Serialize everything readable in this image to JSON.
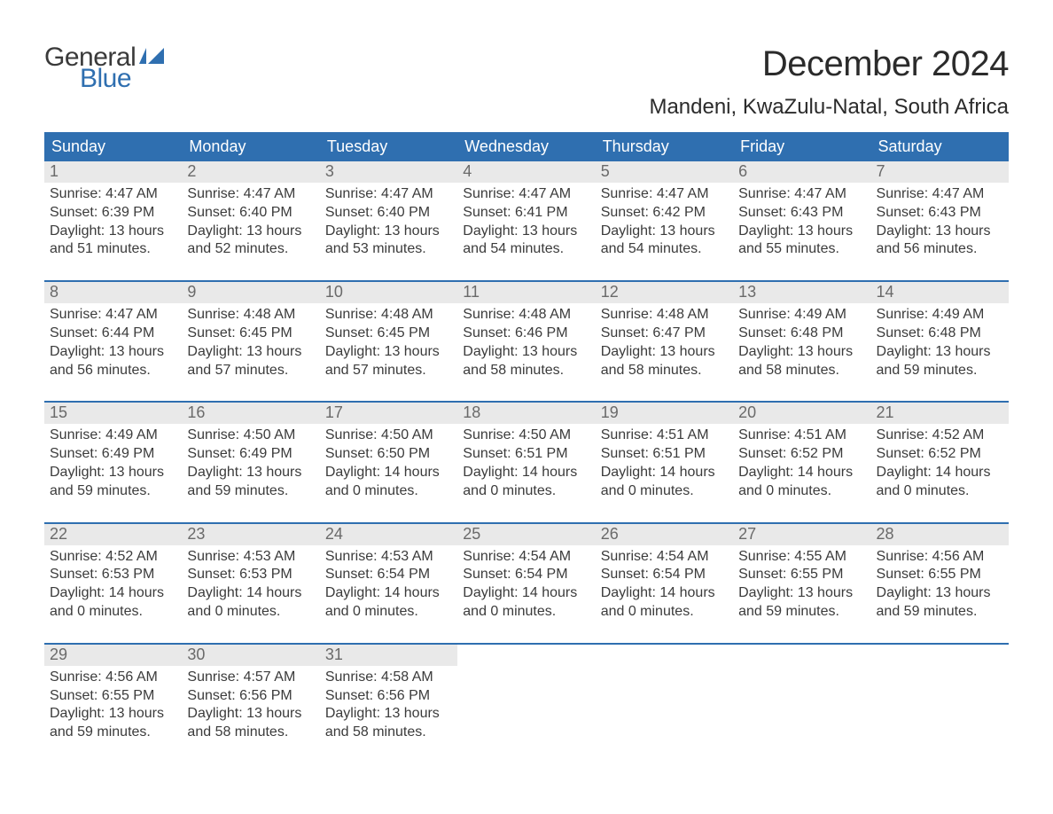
{
  "brand": {
    "general": "General",
    "blue": "Blue",
    "flag_color": "#2f6fb0"
  },
  "title": "December 2024",
  "location": "Mandeni, KwaZulu-Natal, South Africa",
  "colors": {
    "header_bg": "#2f6fb0",
    "header_text": "#ffffff",
    "datebar_bg": "#e9e9e9",
    "datebar_text": "#6a6a6a",
    "body_text": "#3b3b3b",
    "rule": "#2f6fb0",
    "page_bg": "#ffffff"
  },
  "day_headers": [
    "Sunday",
    "Monday",
    "Tuesday",
    "Wednesday",
    "Thursday",
    "Friday",
    "Saturday"
  ],
  "labels": {
    "sunrise": "Sunrise:",
    "sunset": "Sunset:",
    "daylight": "Daylight:"
  },
  "weeks": [
    [
      {
        "date": "1",
        "sunrise": "4:47 AM",
        "sunset": "6:39 PM",
        "daylight_l1": "13 hours",
        "daylight_l2": "and 51 minutes."
      },
      {
        "date": "2",
        "sunrise": "4:47 AM",
        "sunset": "6:40 PM",
        "daylight_l1": "13 hours",
        "daylight_l2": "and 52 minutes."
      },
      {
        "date": "3",
        "sunrise": "4:47 AM",
        "sunset": "6:40 PM",
        "daylight_l1": "13 hours",
        "daylight_l2": "and 53 minutes."
      },
      {
        "date": "4",
        "sunrise": "4:47 AM",
        "sunset": "6:41 PM",
        "daylight_l1": "13 hours",
        "daylight_l2": "and 54 minutes."
      },
      {
        "date": "5",
        "sunrise": "4:47 AM",
        "sunset": "6:42 PM",
        "daylight_l1": "13 hours",
        "daylight_l2": "and 54 minutes."
      },
      {
        "date": "6",
        "sunrise": "4:47 AM",
        "sunset": "6:43 PM",
        "daylight_l1": "13 hours",
        "daylight_l2": "and 55 minutes."
      },
      {
        "date": "7",
        "sunrise": "4:47 AM",
        "sunset": "6:43 PM",
        "daylight_l1": "13 hours",
        "daylight_l2": "and 56 minutes."
      }
    ],
    [
      {
        "date": "8",
        "sunrise": "4:47 AM",
        "sunset": "6:44 PM",
        "daylight_l1": "13 hours",
        "daylight_l2": "and 56 minutes."
      },
      {
        "date": "9",
        "sunrise": "4:48 AM",
        "sunset": "6:45 PM",
        "daylight_l1": "13 hours",
        "daylight_l2": "and 57 minutes."
      },
      {
        "date": "10",
        "sunrise": "4:48 AM",
        "sunset": "6:45 PM",
        "daylight_l1": "13 hours",
        "daylight_l2": "and 57 minutes."
      },
      {
        "date": "11",
        "sunrise": "4:48 AM",
        "sunset": "6:46 PM",
        "daylight_l1": "13 hours",
        "daylight_l2": "and 58 minutes."
      },
      {
        "date": "12",
        "sunrise": "4:48 AM",
        "sunset": "6:47 PM",
        "daylight_l1": "13 hours",
        "daylight_l2": "and 58 minutes."
      },
      {
        "date": "13",
        "sunrise": "4:49 AM",
        "sunset": "6:48 PM",
        "daylight_l1": "13 hours",
        "daylight_l2": "and 58 minutes."
      },
      {
        "date": "14",
        "sunrise": "4:49 AM",
        "sunset": "6:48 PM",
        "daylight_l1": "13 hours",
        "daylight_l2": "and 59 minutes."
      }
    ],
    [
      {
        "date": "15",
        "sunrise": "4:49 AM",
        "sunset": "6:49 PM",
        "daylight_l1": "13 hours",
        "daylight_l2": "and 59 minutes."
      },
      {
        "date": "16",
        "sunrise": "4:50 AM",
        "sunset": "6:49 PM",
        "daylight_l1": "13 hours",
        "daylight_l2": "and 59 minutes."
      },
      {
        "date": "17",
        "sunrise": "4:50 AM",
        "sunset": "6:50 PM",
        "daylight_l1": "14 hours",
        "daylight_l2": "and 0 minutes."
      },
      {
        "date": "18",
        "sunrise": "4:50 AM",
        "sunset": "6:51 PM",
        "daylight_l1": "14 hours",
        "daylight_l2": "and 0 minutes."
      },
      {
        "date": "19",
        "sunrise": "4:51 AM",
        "sunset": "6:51 PM",
        "daylight_l1": "14 hours",
        "daylight_l2": "and 0 minutes."
      },
      {
        "date": "20",
        "sunrise": "4:51 AM",
        "sunset": "6:52 PM",
        "daylight_l1": "14 hours",
        "daylight_l2": "and 0 minutes."
      },
      {
        "date": "21",
        "sunrise": "4:52 AM",
        "sunset": "6:52 PM",
        "daylight_l1": "14 hours",
        "daylight_l2": "and 0 minutes."
      }
    ],
    [
      {
        "date": "22",
        "sunrise": "4:52 AM",
        "sunset": "6:53 PM",
        "daylight_l1": "14 hours",
        "daylight_l2": "and 0 minutes."
      },
      {
        "date": "23",
        "sunrise": "4:53 AM",
        "sunset": "6:53 PM",
        "daylight_l1": "14 hours",
        "daylight_l2": "and 0 minutes."
      },
      {
        "date": "24",
        "sunrise": "4:53 AM",
        "sunset": "6:54 PM",
        "daylight_l1": "14 hours",
        "daylight_l2": "and 0 minutes."
      },
      {
        "date": "25",
        "sunrise": "4:54 AM",
        "sunset": "6:54 PM",
        "daylight_l1": "14 hours",
        "daylight_l2": "and 0 minutes."
      },
      {
        "date": "26",
        "sunrise": "4:54 AM",
        "sunset": "6:54 PM",
        "daylight_l1": "14 hours",
        "daylight_l2": "and 0 minutes."
      },
      {
        "date": "27",
        "sunrise": "4:55 AM",
        "sunset": "6:55 PM",
        "daylight_l1": "13 hours",
        "daylight_l2": "and 59 minutes."
      },
      {
        "date": "28",
        "sunrise": "4:56 AM",
        "sunset": "6:55 PM",
        "daylight_l1": "13 hours",
        "daylight_l2": "and 59 minutes."
      }
    ],
    [
      {
        "date": "29",
        "sunrise": "4:56 AM",
        "sunset": "6:55 PM",
        "daylight_l1": "13 hours",
        "daylight_l2": "and 59 minutes."
      },
      {
        "date": "30",
        "sunrise": "4:57 AM",
        "sunset": "6:56 PM",
        "daylight_l1": "13 hours",
        "daylight_l2": "and 58 minutes."
      },
      {
        "date": "31",
        "sunrise": "4:58 AM",
        "sunset": "6:56 PM",
        "daylight_l1": "13 hours",
        "daylight_l2": "and 58 minutes."
      },
      null,
      null,
      null,
      null
    ]
  ]
}
